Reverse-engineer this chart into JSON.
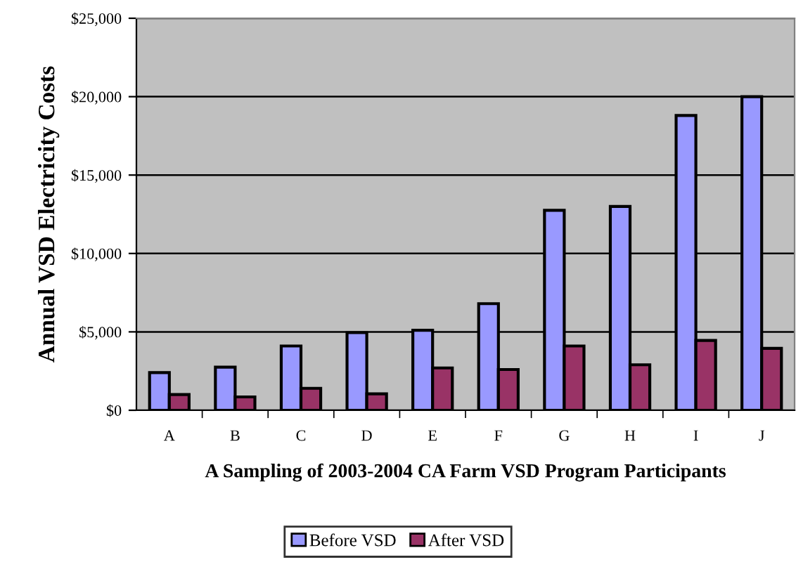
{
  "chart_data": {
    "type": "bar",
    "xlabel": "A Sampling of 2003-2004 CA Farm VSD Program Participants",
    "ylabel": "Annual VSD Electricity Costs",
    "categories": [
      "A",
      "B",
      "C",
      "D",
      "E",
      "F",
      "G",
      "H",
      "I",
      "J"
    ],
    "series": [
      {
        "name": "Before VSD",
        "color": "#9999ff",
        "values": [
          2400,
          2750,
          4100,
          4950,
          5100,
          6800,
          12750,
          13000,
          18800,
          20000
        ]
      },
      {
        "name": "After VSD",
        "color": "#993366",
        "values": [
          1000,
          850,
          1400,
          1050,
          2700,
          2600,
          4100,
          2900,
          4450,
          3950
        ]
      }
    ],
    "ylim": [
      0,
      25000
    ],
    "yticks": [
      {
        "value": 0,
        "label": "$0"
      },
      {
        "value": 5000,
        "label": "$5,000"
      },
      {
        "value": 10000,
        "label": "$10,000"
      },
      {
        "value": 15000,
        "label": "$15,000"
      },
      {
        "value": 20000,
        "label": "$20,000"
      },
      {
        "value": 25000,
        "label": "$25,000"
      }
    ],
    "grid": "y",
    "legend": "bottom"
  }
}
